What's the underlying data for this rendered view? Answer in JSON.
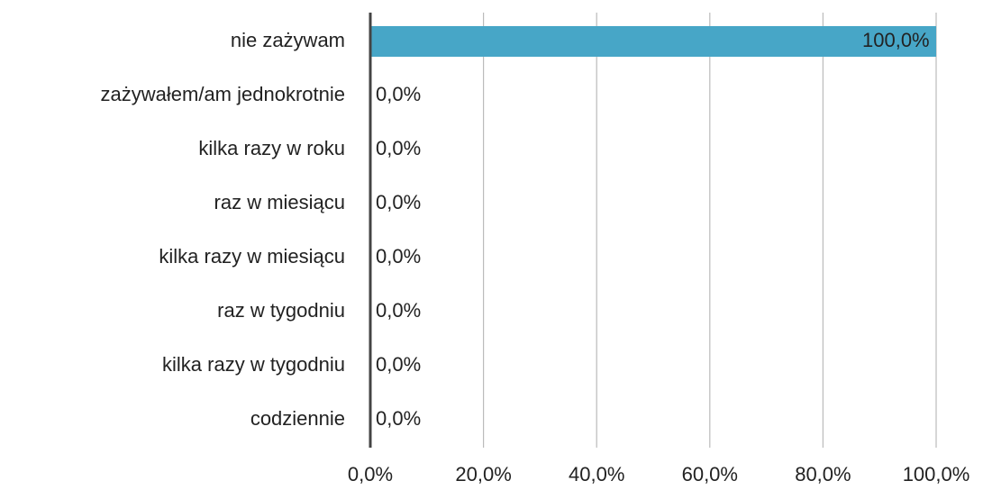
{
  "chart_data": {
    "type": "barh",
    "categories": [
      "nie zażywam",
      "zażywałem/am jednokrotnie",
      "kilka razy w roku",
      "raz w miesiącu",
      "kilka razy w miesiącu",
      "raz w tygodniu",
      "kilka razy w tygodniu",
      "codziennie"
    ],
    "values": [
      100,
      0,
      0,
      0,
      0,
      0,
      0,
      0
    ],
    "value_labels": [
      "100,0%",
      "0,0%",
      "0,0%",
      "0,0%",
      "0,0%",
      "0,0%",
      "0,0%",
      "0,0%"
    ],
    "color": "#47a6c7",
    "xlim": [
      0,
      100
    ],
    "xticks": [
      {
        "value": 0,
        "label": "0,0%"
      },
      {
        "value": 20,
        "label": "20,0%"
      },
      {
        "value": 40,
        "label": "40,0%"
      },
      {
        "value": 60,
        "label": "60,0%"
      },
      {
        "value": 80,
        "label": "80,0%"
      },
      {
        "value": 100,
        "label": "100,0%"
      }
    ],
    "grid": true
  }
}
